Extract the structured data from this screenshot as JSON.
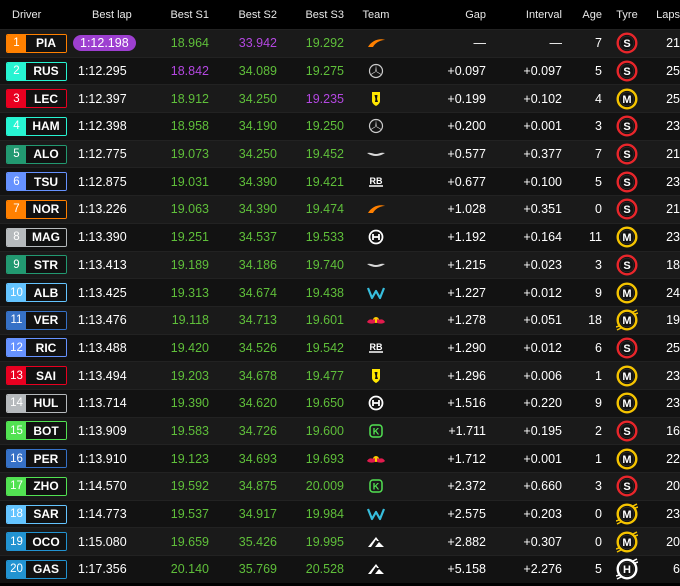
{
  "headers": {
    "driver": "Driver",
    "best_lap": "Best lap",
    "best_s1": "Best S1",
    "best_s2": "Best S2",
    "best_s3": "Best S3",
    "team": "Team",
    "gap": "Gap",
    "interval": "Interval",
    "age": "Age",
    "tyre": "Tyre",
    "laps": "Laps"
  },
  "colors": {
    "purple": "#b347e0",
    "green": "#5fbf3a"
  },
  "rows": [
    {
      "pos": "1",
      "code": "PIA",
      "color": "#ff8000",
      "team": "mclaren-logo",
      "best": "1:12.198",
      "best_purple": true,
      "s1": "18.964",
      "s1c": "g",
      "s2": "33.942",
      "s2c": "p",
      "s3": "19.292",
      "s3c": "g",
      "gap": "—",
      "int": "—",
      "age": "7",
      "tyre": "S",
      "laps": "21"
    },
    {
      "pos": "2",
      "code": "RUS",
      "color": "#27f4d2",
      "team": "mercedes-logo",
      "best": "1:12.295",
      "s1": "18.842",
      "s1c": "p",
      "s2": "34.089",
      "s2c": "g",
      "s3": "19.275",
      "s3c": "g",
      "gap": "+0.097",
      "int": "+0.097",
      "age": "5",
      "tyre": "S",
      "laps": "25"
    },
    {
      "pos": "3",
      "code": "LEC",
      "color": "#e80020",
      "team": "ferrari-logo",
      "best": "1:12.397",
      "s1": "18.912",
      "s1c": "g",
      "s2": "34.250",
      "s2c": "g",
      "s3": "19.235",
      "s3c": "p",
      "gap": "+0.199",
      "int": "+0.102",
      "age": "4",
      "tyre": "M",
      "laps": "25"
    },
    {
      "pos": "4",
      "code": "HAM",
      "color": "#27f4d2",
      "team": "mercedes-logo",
      "best": "1:12.398",
      "s1": "18.958",
      "s1c": "g",
      "s2": "34.190",
      "s2c": "g",
      "s3": "19.250",
      "s3c": "g",
      "gap": "+0.200",
      "int": "+0.001",
      "age": "3",
      "tyre": "S",
      "laps": "23"
    },
    {
      "pos": "5",
      "code": "ALO",
      "color": "#229971",
      "team": "aston-martin-logo",
      "best": "1:12.775",
      "s1": "19.073",
      "s1c": "g",
      "s2": "34.250",
      "s2c": "g",
      "s3": "19.452",
      "s3c": "g",
      "gap": "+0.577",
      "int": "+0.377",
      "age": "7",
      "tyre": "S",
      "laps": "21"
    },
    {
      "pos": "6",
      "code": "TSU",
      "color": "#6692ff",
      "team": "rb-logo",
      "best": "1:12.875",
      "s1": "19.031",
      "s1c": "g",
      "s2": "34.390",
      "s2c": "g",
      "s3": "19.421",
      "s3c": "g",
      "gap": "+0.677",
      "int": "+0.100",
      "age": "5",
      "tyre": "S",
      "laps": "23"
    },
    {
      "pos": "7",
      "code": "NOR",
      "color": "#ff8000",
      "team": "mclaren-logo",
      "best": "1:13.226",
      "s1": "19.063",
      "s1c": "g",
      "s2": "34.390",
      "s2c": "g",
      "s3": "19.474",
      "s3c": "g",
      "gap": "+1.028",
      "int": "+0.351",
      "age": "0",
      "tyre": "S",
      "laps": "21"
    },
    {
      "pos": "8",
      "code": "MAG",
      "color": "#b6babd",
      "team": "haas-logo",
      "best": "1:13.390",
      "s1": "19.251",
      "s1c": "g",
      "s2": "34.537",
      "s2c": "g",
      "s3": "19.533",
      "s3c": "g",
      "gap": "+1.192",
      "int": "+0.164",
      "age": "11",
      "tyre": "M",
      "laps": "23"
    },
    {
      "pos": "9",
      "code": "STR",
      "color": "#229971",
      "team": "aston-martin-logo",
      "best": "1:13.413",
      "s1": "19.189",
      "s1c": "g",
      "s2": "34.186",
      "s2c": "g",
      "s3": "19.740",
      "s3c": "g",
      "gap": "+1.215",
      "int": "+0.023",
      "age": "3",
      "tyre": "S",
      "laps": "18"
    },
    {
      "pos": "10",
      "code": "ALB",
      "color": "#64c4ff",
      "team": "williams-logo",
      "best": "1:13.425",
      "s1": "19.313",
      "s1c": "g",
      "s2": "34.674",
      "s2c": "g",
      "s3": "19.438",
      "s3c": "g",
      "gap": "+1.227",
      "int": "+0.012",
      "age": "9",
      "tyre": "M",
      "laps": "24"
    },
    {
      "pos": "11",
      "code": "VER",
      "color": "#3671c6",
      "team": "red-bull-logo",
      "best": "1:13.476",
      "s1": "19.118",
      "s1c": "g",
      "s2": "34.713",
      "s2c": "g",
      "s3": "19.601",
      "s3c": "g",
      "gap": "+1.278",
      "int": "+0.051",
      "age": "18",
      "tyre": "M",
      "used": true,
      "laps": "19"
    },
    {
      "pos": "12",
      "code": "RIC",
      "color": "#6692ff",
      "team": "rb-logo",
      "best": "1:13.488",
      "s1": "19.420",
      "s1c": "g",
      "s2": "34.526",
      "s2c": "g",
      "s3": "19.542",
      "s3c": "g",
      "gap": "+1.290",
      "int": "+0.012",
      "age": "6",
      "tyre": "S",
      "laps": "25"
    },
    {
      "pos": "13",
      "code": "SAI",
      "color": "#e80020",
      "team": "ferrari-logo",
      "best": "1:13.494",
      "s1": "19.203",
      "s1c": "g",
      "s2": "34.678",
      "s2c": "g",
      "s3": "19.477",
      "s3c": "g",
      "gap": "+1.296",
      "int": "+0.006",
      "age": "1",
      "tyre": "M",
      "laps": "23"
    },
    {
      "pos": "14",
      "code": "HUL",
      "color": "#b6babd",
      "team": "haas-logo",
      "best": "1:13.714",
      "s1": "19.390",
      "s1c": "g",
      "s2": "34.620",
      "s2c": "g",
      "s3": "19.650",
      "s3c": "g",
      "gap": "+1.516",
      "int": "+0.220",
      "age": "9",
      "tyre": "M",
      "laps": "23"
    },
    {
      "pos": "15",
      "code": "BOT",
      "color": "#52e252",
      "team": "kick-sauber-logo",
      "best": "1:13.909",
      "s1": "19.583",
      "s1c": "g",
      "s2": "34.726",
      "s2c": "g",
      "s3": "19.600",
      "s3c": "g",
      "gap": "+1.711",
      "int": "+0.195",
      "age": "2",
      "tyre": "S",
      "laps": "16"
    },
    {
      "pos": "16",
      "code": "PER",
      "color": "#3671c6",
      "team": "red-bull-logo",
      "best": "1:13.910",
      "s1": "19.123",
      "s1c": "g",
      "s2": "34.693",
      "s2c": "g",
      "s3": "19.693",
      "s3c": "g",
      "gap": "+1.712",
      "int": "+0.001",
      "age": "1",
      "tyre": "M",
      "laps": "22"
    },
    {
      "pos": "17",
      "code": "ZHO",
      "color": "#52e252",
      "team": "kick-sauber-logo",
      "best": "1:14.570",
      "s1": "19.592",
      "s1c": "g",
      "s2": "34.875",
      "s2c": "g",
      "s3": "20.009",
      "s3c": "g",
      "gap": "+2.372",
      "int": "+0.660",
      "age": "3",
      "tyre": "S",
      "laps": "20"
    },
    {
      "pos": "18",
      "code": "SAR",
      "color": "#64c4ff",
      "team": "williams-logo",
      "best": "1:14.773",
      "s1": "19.537",
      "s1c": "g",
      "s2": "34.917",
      "s2c": "g",
      "s3": "19.984",
      "s3c": "g",
      "gap": "+2.575",
      "int": "+0.203",
      "age": "0",
      "tyre": "M",
      "used": true,
      "laps": "23"
    },
    {
      "pos": "19",
      "code": "OCO",
      "color": "#2293d1",
      "team": "alpine-logo",
      "best": "1:15.080",
      "s1": "19.659",
      "s1c": "g",
      "s2": "35.426",
      "s2c": "g",
      "s3": "19.995",
      "s3c": "g",
      "gap": "+2.882",
      "int": "+0.307",
      "age": "0",
      "tyre": "M",
      "used": true,
      "laps": "20"
    },
    {
      "pos": "20",
      "code": "GAS",
      "color": "#2293d1",
      "team": "alpine-logo",
      "best": "1:17.356",
      "s1": "20.140",
      "s1c": "g",
      "s2": "35.769",
      "s2c": "g",
      "s3": "20.528",
      "s3c": "g",
      "gap": "+5.158",
      "int": "+2.276",
      "age": "5",
      "tyre": "H",
      "used": true,
      "laps": "6"
    }
  ]
}
